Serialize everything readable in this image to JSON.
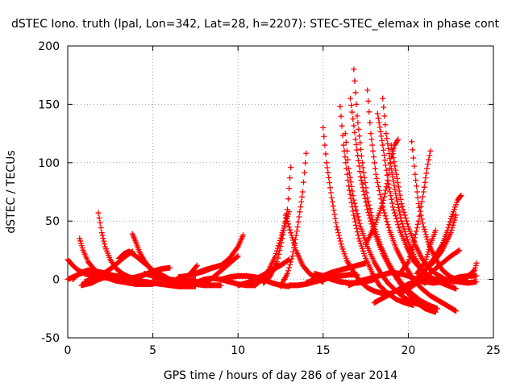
{
  "chart_data": {
    "type": "scatter",
    "title": "dSTEC Iono. truth (lpal, Lon=342, Lat=28, h=2207): STEC-STEC_elemax in phase cont",
    "xlabel": "GPS time / hours of day 286 of year 2014",
    "ylabel": "dSTEC  / TECUs",
    "xlim": [
      0,
      25
    ],
    "ylim": [
      -50,
      200
    ],
    "xticks": [
      0,
      5,
      10,
      15,
      20,
      25
    ],
    "yticks": [
      -50,
      0,
      50,
      100,
      150,
      200
    ],
    "xtick_labels": [
      "0",
      "5",
      "10",
      "15",
      "20",
      "25"
    ],
    "ytick_labels": [
      "-50",
      "0",
      "50",
      "100",
      "150",
      "200"
    ],
    "grid": true,
    "marker": "+",
    "color": "#ff0000",
    "series": [
      {
        "x": [
          0.0,
          0.3,
          0.6,
          1.0,
          1.5,
          2.0,
          2.5,
          3.0,
          3.5,
          4.0
        ],
        "values": [
          17,
          12,
          8,
          5,
          3,
          2,
          1,
          0,
          -1,
          -2
        ]
      },
      {
        "x": [
          0.0,
          0.3,
          0.6,
          0.9,
          1.2,
          1.5,
          2.0
        ],
        "values": [
          0,
          2,
          4,
          6,
          7,
          6,
          4
        ]
      },
      {
        "x": [
          0.7,
          0.9,
          1.2,
          1.6,
          2.0,
          2.4,
          2.8,
          3.2,
          3.6,
          4.0,
          4.4,
          4.8,
          5.0
        ],
        "values": [
          35,
          25,
          15,
          8,
          4,
          1,
          -1,
          -2,
          -3,
          -4,
          -4,
          -4,
          -4
        ]
      },
      {
        "x": [
          0.8,
          1.1,
          1.4,
          1.8,
          2.2,
          2.6,
          3.0,
          3.5,
          4.0
        ],
        "values": [
          -5,
          -4,
          -3,
          0,
          2,
          3,
          3,
          2,
          1
        ]
      },
      {
        "x": [
          0.3,
          0.5,
          0.8,
          1.2,
          1.6,
          2.0,
          2.5,
          3.0,
          3.5
        ],
        "values": [
          0,
          3,
          6,
          8,
          7,
          6,
          4,
          2,
          0
        ]
      },
      {
        "x": [
          1.8,
          2.0,
          2.2,
          2.5,
          2.8,
          3.2,
          3.6,
          4.0,
          4.5,
          5.0,
          5.5,
          6.0
        ],
        "values": [
          57,
          40,
          28,
          17,
          10,
          5,
          2,
          0,
          -2,
          -3,
          -4,
          -4
        ]
      },
      {
        "x": [
          1.0,
          1.4,
          1.8,
          2.2,
          2.6,
          3.0,
          3.4,
          3.8
        ],
        "values": [
          -2,
          0,
          3,
          6,
          10,
          15,
          20,
          24
        ]
      },
      {
        "x": [
          3.0,
          3.3,
          3.6,
          4.0,
          4.5,
          5.0,
          5.5,
          6.0,
          6.5
        ],
        "values": [
          18,
          22,
          24,
          20,
          14,
          8,
          4,
          0,
          -2
        ]
      },
      {
        "x": [
          3.8,
          4.0,
          4.2,
          4.5,
          4.8,
          5.2,
          5.6,
          6.0,
          6.5,
          7.0,
          7.5
        ],
        "values": [
          39,
          32,
          24,
          16,
          10,
          4,
          0,
          -3,
          -5,
          -6,
          -6
        ]
      },
      {
        "x": [
          2.0,
          2.5,
          3.0,
          3.5,
          4.0,
          4.5,
          5.0,
          5.5,
          6.0,
          6.5,
          7.0
        ],
        "values": [
          2,
          1,
          0,
          -1,
          -2,
          -3,
          -3,
          -4,
          -5,
          -6,
          -6
        ]
      },
      {
        "x": [
          3.5,
          4.0,
          4.5,
          5.0,
          5.5,
          6.0
        ],
        "values": [
          0,
          2,
          4,
          7,
          9,
          10
        ]
      },
      {
        "x": [
          4.5,
          5.0,
          5.5,
          6.0,
          6.5,
          7.0,
          7.5
        ],
        "values": [
          5,
          3,
          1,
          -2,
          -3,
          -2,
          0
        ]
      },
      {
        "x": [
          5.0,
          5.5,
          6.0,
          6.5,
          7.0,
          7.5,
          8.0,
          8.5,
          9.0
        ],
        "values": [
          2,
          1,
          0,
          -1,
          -3,
          -4,
          -5,
          -5,
          -5
        ]
      },
      {
        "x": [
          6.0,
          6.4,
          6.8,
          7.2,
          7.6
        ],
        "values": [
          -5,
          -3,
          0,
          5,
          12
        ]
      },
      {
        "x": [
          7.0,
          7.5,
          8.0,
          8.5,
          9.0,
          9.5,
          10.0,
          10.5,
          11.0
        ],
        "values": [
          -6,
          -3,
          0,
          1,
          0,
          -2,
          -4,
          -5,
          -5
        ]
      },
      {
        "x": [
          8.0,
          8.4,
          8.8,
          9.2,
          9.6,
          10.0
        ],
        "values": [
          -2,
          0,
          5,
          10,
          15,
          20
        ]
      },
      {
        "x": [
          7.5,
          8.0,
          8.5,
          9.0,
          9.5,
          10.0,
          10.3
        ],
        "values": [
          5,
          8,
          10,
          12,
          18,
          28,
          38
        ]
      },
      {
        "x": [
          6.5,
          7.0,
          7.5,
          8.0,
          8.5,
          9.0
        ],
        "values": [
          2,
          3,
          5,
          7,
          10,
          12
        ]
      },
      {
        "x": [
          9.0,
          9.5,
          10.0,
          10.5,
          11.0,
          11.5,
          12.0,
          12.5,
          13.0
        ],
        "values": [
          0,
          2,
          3,
          3,
          2,
          0,
          -3,
          -5,
          -6
        ]
      },
      {
        "x": [
          10.0,
          10.5,
          11.0,
          11.5,
          12.0,
          12.5,
          13.0
        ],
        "values": [
          -5,
          -3,
          0,
          4,
          8,
          12,
          17
        ]
      },
      {
        "x": [
          11.0,
          11.4,
          11.8,
          12.2,
          12.6,
          13.0
        ],
        "values": [
          -5,
          0,
          8,
          20,
          40,
          58
        ]
      },
      {
        "x": [
          11.5,
          11.9,
          12.3,
          12.6,
          12.9,
          13.1
        ],
        "values": [
          -3,
          3,
          15,
          35,
          60,
          96
        ]
      },
      {
        "x": [
          12.5,
          12.9,
          13.2,
          13.5,
          13.8,
          14.0
        ],
        "values": [
          -6,
          5,
          20,
          45,
          75,
          108
        ]
      },
      {
        "x": [
          12.8,
          13.1,
          13.4,
          13.8,
          14.2,
          14.6,
          15.0
        ],
        "values": [
          55,
          40,
          25,
          12,
          5,
          1,
          -2
        ]
      },
      {
        "x": [
          13.0,
          13.5,
          14.0,
          14.5,
          15.0,
          15.5,
          16.0,
          16.5,
          17.0
        ],
        "values": [
          -5,
          -5,
          -4,
          -2,
          0,
          2,
          3,
          4,
          4
        ]
      },
      {
        "x": [
          14.0,
          14.5,
          15.0,
          15.5,
          16.0,
          16.5,
          17.0,
          17.5
        ],
        "values": [
          -3,
          0,
          3,
          6,
          8,
          10,
          12,
          14
        ]
      },
      {
        "x": [
          15.0,
          15.2,
          15.5,
          15.8,
          16.1,
          16.4,
          16.8,
          17.2,
          17.6,
          18.0,
          18.5,
          19.0
        ],
        "values": [
          130,
          100,
          70,
          45,
          28,
          16,
          6,
          -2,
          -7,
          -10,
          -12,
          -12
        ]
      },
      {
        "x": [
          16.0,
          16.2,
          16.5,
          16.8,
          17.1,
          17.5,
          17.9,
          18.3,
          18.8,
          19.3,
          19.8,
          20.3
        ],
        "values": [
          148,
          115,
          80,
          55,
          35,
          18,
          5,
          -5,
          -12,
          -17,
          -20,
          -22
        ]
      },
      {
        "x": [
          16.3,
          16.5,
          16.8,
          17.2,
          17.6,
          18.0,
          18.4,
          18.8,
          19.3,
          19.8,
          20.3,
          20.8
        ],
        "values": [
          125,
          95,
          68,
          45,
          28,
          15,
          5,
          -3,
          -10,
          -16,
          -20,
          -22
        ]
      },
      {
        "x": [
          16.8,
          17.0,
          17.3,
          17.6,
          18.0,
          18.4,
          18.8,
          19.2,
          19.7,
          20.2,
          20.7,
          21.2,
          21.7
        ],
        "values": [
          180,
          140,
          100,
          70,
          45,
          28,
          15,
          5,
          -5,
          -12,
          -18,
          -22,
          -25
        ]
      },
      {
        "x": [
          16.6,
          16.9,
          17.2,
          17.6,
          18.0,
          18.5,
          19.0,
          19.5,
          20.0,
          20.5,
          21.0,
          21.6
        ],
        "values": [
          155,
          120,
          88,
          60,
          40,
          22,
          8,
          -3,
          -12,
          -20,
          -25,
          -28
        ]
      },
      {
        "x": [
          17.6,
          17.8,
          18.1,
          18.5,
          18.9,
          19.3,
          19.8,
          20.3,
          20.8,
          21.3,
          22.0,
          22.8
        ],
        "values": [
          162,
          125,
          90,
          62,
          42,
          26,
          12,
          0,
          -8,
          -14,
          -20,
          -27
        ]
      },
      {
        "x": [
          16.5,
          17.0,
          17.5,
          18.0,
          18.5,
          19.0,
          19.5,
          20.0,
          20.5,
          21.0
        ],
        "values": [
          -5,
          -2,
          0,
          2,
          4,
          6,
          5,
          3,
          0,
          -3
        ]
      },
      {
        "x": [
          18.2,
          18.5,
          18.8,
          19.1,
          19.5,
          19.9,
          20.3,
          20.8,
          21.3,
          21.8,
          22.3,
          22.8
        ],
        "values": [
          142,
          115,
          85,
          62,
          42,
          28,
          16,
          8,
          2,
          -2,
          -5,
          -8
        ]
      },
      {
        "x": [
          18.5,
          18.7,
          19.0,
          19.3,
          19.6,
          20.0,
          20.4,
          20.8,
          21.3
        ],
        "values": [
          155,
          125,
          95,
          70,
          50,
          32,
          18,
          8,
          2
        ]
      },
      {
        "x": [
          17.5,
          18.0,
          18.5,
          18.8,
          19.0,
          19.2,
          19.4
        ],
        "values": [
          30,
          45,
          65,
          85,
          105,
          115,
          120
        ]
      },
      {
        "x": [
          19.0,
          19.3,
          19.6,
          20.0,
          20.4,
          20.8,
          21.2,
          21.7,
          22.2,
          22.7
        ],
        "values": [
          115,
          90,
          65,
          45,
          30,
          18,
          10,
          4,
          0,
          -2
        ]
      },
      {
        "x": [
          20.2,
          20.4,
          20.6,
          20.9,
          21.2,
          21.6,
          22.0,
          22.5,
          23.0,
          23.5
        ],
        "values": [
          118,
          90,
          65,
          45,
          30,
          18,
          8,
          2,
          -1,
          -2
        ]
      },
      {
        "x": [
          19.5,
          20.0,
          20.3,
          20.6,
          20.9,
          21.1,
          21.3
        ],
        "values": [
          5,
          15,
          30,
          50,
          75,
          95,
          110
        ]
      },
      {
        "x": [
          19.5,
          20.0,
          20.5,
          21.0,
          21.5,
          22.0,
          22.5,
          23.0
        ],
        "values": [
          -12,
          -8,
          -3,
          2,
          8,
          14,
          20,
          25
        ]
      },
      {
        "x": [
          20.5,
          21.0,
          21.3,
          21.6
        ],
        "values": [
          5,
          15,
          30,
          42
        ]
      },
      {
        "x": [
          21.0,
          21.5,
          22.0,
          22.3,
          22.5,
          22.7,
          22.9,
          23.1
        ],
        "values": [
          8,
          18,
          30,
          42,
          52,
          60,
          68,
          72
        ]
      },
      {
        "x": [
          20.0,
          20.5,
          21.0,
          21.5,
          22.0,
          22.5,
          22.8
        ],
        "values": [
          -5,
          0,
          8,
          15,
          25,
          40,
          55
        ]
      },
      {
        "x": [
          20.5,
          21.0,
          21.5,
          22.0,
          22.5,
          23.0,
          23.5,
          24.0
        ],
        "values": [
          0,
          -2,
          -3,
          -2,
          0,
          2,
          3,
          3
        ]
      },
      {
        "x": [
          23.0,
          23.3,
          23.6,
          23.9,
          24.0
        ],
        "values": [
          -2,
          1,
          4,
          8,
          14
        ]
      },
      {
        "x": [
          22.5,
          23.0,
          23.5,
          24.0
        ],
        "values": [
          -1,
          -2,
          -3,
          -2
        ]
      },
      {
        "x": [
          18.0,
          18.5,
          19.0,
          19.5,
          20.0,
          20.5,
          21.0,
          21.5,
          22.0
        ],
        "values": [
          -20,
          -16,
          -12,
          -8,
          -4,
          -1,
          0,
          0,
          -1
        ]
      },
      {
        "x": [
          14.5,
          15.0,
          15.5,
          16.0,
          16.5,
          17.0,
          17.5,
          18.0
        ],
        "values": [
          5,
          3,
          0,
          -2,
          -3,
          -3,
          -2,
          0
        ]
      }
    ]
  }
}
